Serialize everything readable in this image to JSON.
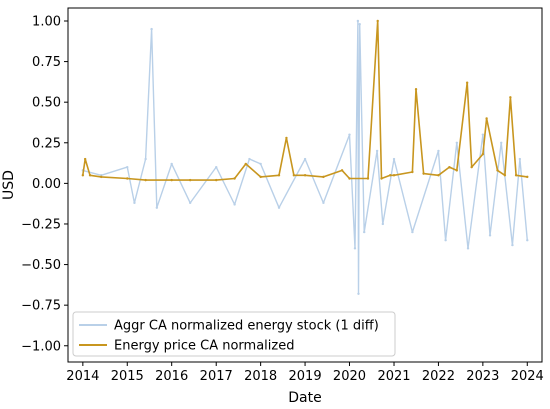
{
  "chart_data": {
    "type": "line",
    "xlabel": "Date",
    "ylabel": "USD",
    "xlim": [
      "2013-09-01",
      "2024-05-01"
    ],
    "ylim": [
      -1.1,
      1.08
    ],
    "x_ticks": [
      "2014",
      "2015",
      "2016",
      "2017",
      "2018",
      "2019",
      "2020",
      "2021",
      "2022",
      "2023",
      "2024"
    ],
    "y_ticks": [
      "1.00",
      "0.75",
      "0.50",
      "0.25",
      "0.00",
      "−0.25",
      "−0.50",
      "−0.75",
      "−1.00"
    ],
    "y_tick_values": [
      1.0,
      0.75,
      0.5,
      0.25,
      0.0,
      -0.25,
      -0.5,
      -0.75,
      -1.0
    ],
    "grid": false,
    "legend_position": "lower-left",
    "series": [
      {
        "name": "Aggr CA normalized energy stock (1 diff)",
        "color": "#b9d0e8",
        "x": [
          "2014-01-01",
          "2014-06-01",
          "2015-01-01",
          "2015-03-01",
          "2015-06-01",
          "2015-07-20",
          "2015-09-01",
          "2016-01-01",
          "2016-06-01",
          "2017-01-01",
          "2017-06-01",
          "2017-10-01",
          "2018-01-01",
          "2018-06-01",
          "2019-01-01",
          "2019-06-01",
          "2020-01-01",
          "2020-02-15",
          "2020-03-10",
          "2020-03-15",
          "2020-03-25",
          "2020-05-01",
          "2020-08-15",
          "2020-10-01",
          "2021-01-01",
          "2021-06-01",
          "2022-01-01",
          "2022-03-01",
          "2022-06-01",
          "2022-09-01",
          "2023-01-01",
          "2023-03-01",
          "2023-06-01",
          "2023-09-01",
          "2023-11-01",
          "2024-01-01"
        ],
        "values": [
          0.08,
          0.05,
          0.1,
          -0.12,
          0.15,
          0.95,
          -0.15,
          0.12,
          -0.12,
          0.1,
          -0.13,
          0.15,
          0.12,
          -0.15,
          0.15,
          -0.12,
          0.3,
          -0.4,
          1.0,
          -0.68,
          0.98,
          -0.3,
          0.2,
          -0.25,
          0.15,
          -0.3,
          0.2,
          -0.35,
          0.25,
          -0.4,
          0.3,
          -0.32,
          0.25,
          -0.38,
          0.15,
          -0.35
        ]
      },
      {
        "name": "Energy price CA normalized",
        "color": "#c8961f",
        "x": [
          "2014-01-01",
          "2014-01-20",
          "2014-03-01",
          "2014-06-01",
          "2015-01-01",
          "2015-06-01",
          "2016-01-01",
          "2016-06-01",
          "2017-01-01",
          "2017-06-01",
          "2017-09-01",
          "2018-01-01",
          "2018-06-01",
          "2018-08-01",
          "2018-10-01",
          "2019-01-01",
          "2019-06-01",
          "2019-11-01",
          "2020-01-01",
          "2020-06-01",
          "2020-08-20",
          "2020-09-20",
          "2020-12-01",
          "2021-01-01",
          "2021-06-01",
          "2021-07-01",
          "2021-09-01",
          "2022-01-01",
          "2022-04-01",
          "2022-06-01",
          "2022-08-25",
          "2022-10-01",
          "2023-01-01",
          "2023-02-01",
          "2023-05-01",
          "2023-07-01",
          "2023-08-15",
          "2023-10-01",
          "2024-01-01"
        ],
        "values": [
          0.05,
          0.15,
          0.05,
          0.04,
          0.03,
          0.02,
          0.02,
          0.02,
          0.02,
          0.03,
          0.12,
          0.04,
          0.05,
          0.28,
          0.05,
          0.05,
          0.04,
          0.08,
          0.03,
          0.03,
          1.0,
          0.03,
          0.05,
          0.05,
          0.07,
          0.58,
          0.06,
          0.05,
          0.1,
          0.08,
          0.62,
          0.1,
          0.18,
          0.4,
          0.08,
          0.05,
          0.53,
          0.05,
          0.04
        ]
      }
    ]
  }
}
